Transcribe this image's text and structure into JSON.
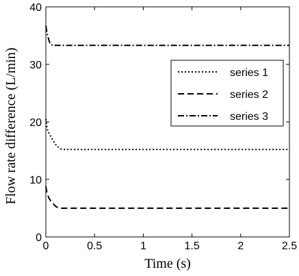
{
  "chart_data": {
    "type": "line",
    "title": "",
    "xlabel": "Time (s)",
    "ylabel": "Flow rate difference (L/min)",
    "xlim": [
      0,
      2.5
    ],
    "ylim": [
      0,
      40
    ],
    "xticks": [
      0,
      0.5,
      1,
      1.5,
      2,
      2.5
    ],
    "xtick_labels": [
      "0",
      "0.5",
      "1",
      "1.5",
      "2",
      "2.5"
    ],
    "yticks": [
      0,
      10,
      20,
      30,
      40
    ],
    "ytick_labels": [
      "0",
      "10",
      "20",
      "30",
      "40"
    ],
    "grid": false,
    "legend_position": "top-right",
    "series": [
      {
        "name": "series 1",
        "line_style": "dotted",
        "color": "#000000",
        "x": [
          0,
          0.01,
          0.02,
          0.04,
          0.06,
          0.08,
          0.1,
          0.12,
          0.15,
          0.2,
          0.5,
          1,
          1.5,
          2,
          2.5
        ],
        "y": [
          20.5,
          19.3,
          18.4,
          17.8,
          17.2,
          16.6,
          16.1,
          15.7,
          15.3,
          15.2,
          15.2,
          15.2,
          15.2,
          15.2,
          15.2
        ]
      },
      {
        "name": "series 2",
        "line_style": "dashed",
        "color": "#000000",
        "x": [
          0,
          0.01,
          0.02,
          0.03,
          0.05,
          0.07,
          0.09,
          0.11,
          0.14,
          0.2,
          0.5,
          1,
          1.5,
          2,
          2.5
        ],
        "y": [
          8.8,
          7.8,
          7.3,
          6.8,
          6.3,
          5.9,
          5.5,
          5.2,
          5.0,
          5.0,
          5.0,
          5.0,
          5.0,
          5.0,
          5.0
        ]
      },
      {
        "name": "series 3",
        "line_style": "dashdot",
        "color": "#000000",
        "x": [
          0,
          0.01,
          0.02,
          0.03,
          0.04,
          0.05,
          0.07,
          0.1,
          0.5,
          1,
          1.5,
          2,
          2.5
        ],
        "y": [
          36.7,
          35.7,
          34.9,
          34.3,
          33.8,
          33.5,
          33.3,
          33.3,
          33.3,
          33.3,
          33.3,
          33.3,
          33.3
        ]
      }
    ]
  }
}
